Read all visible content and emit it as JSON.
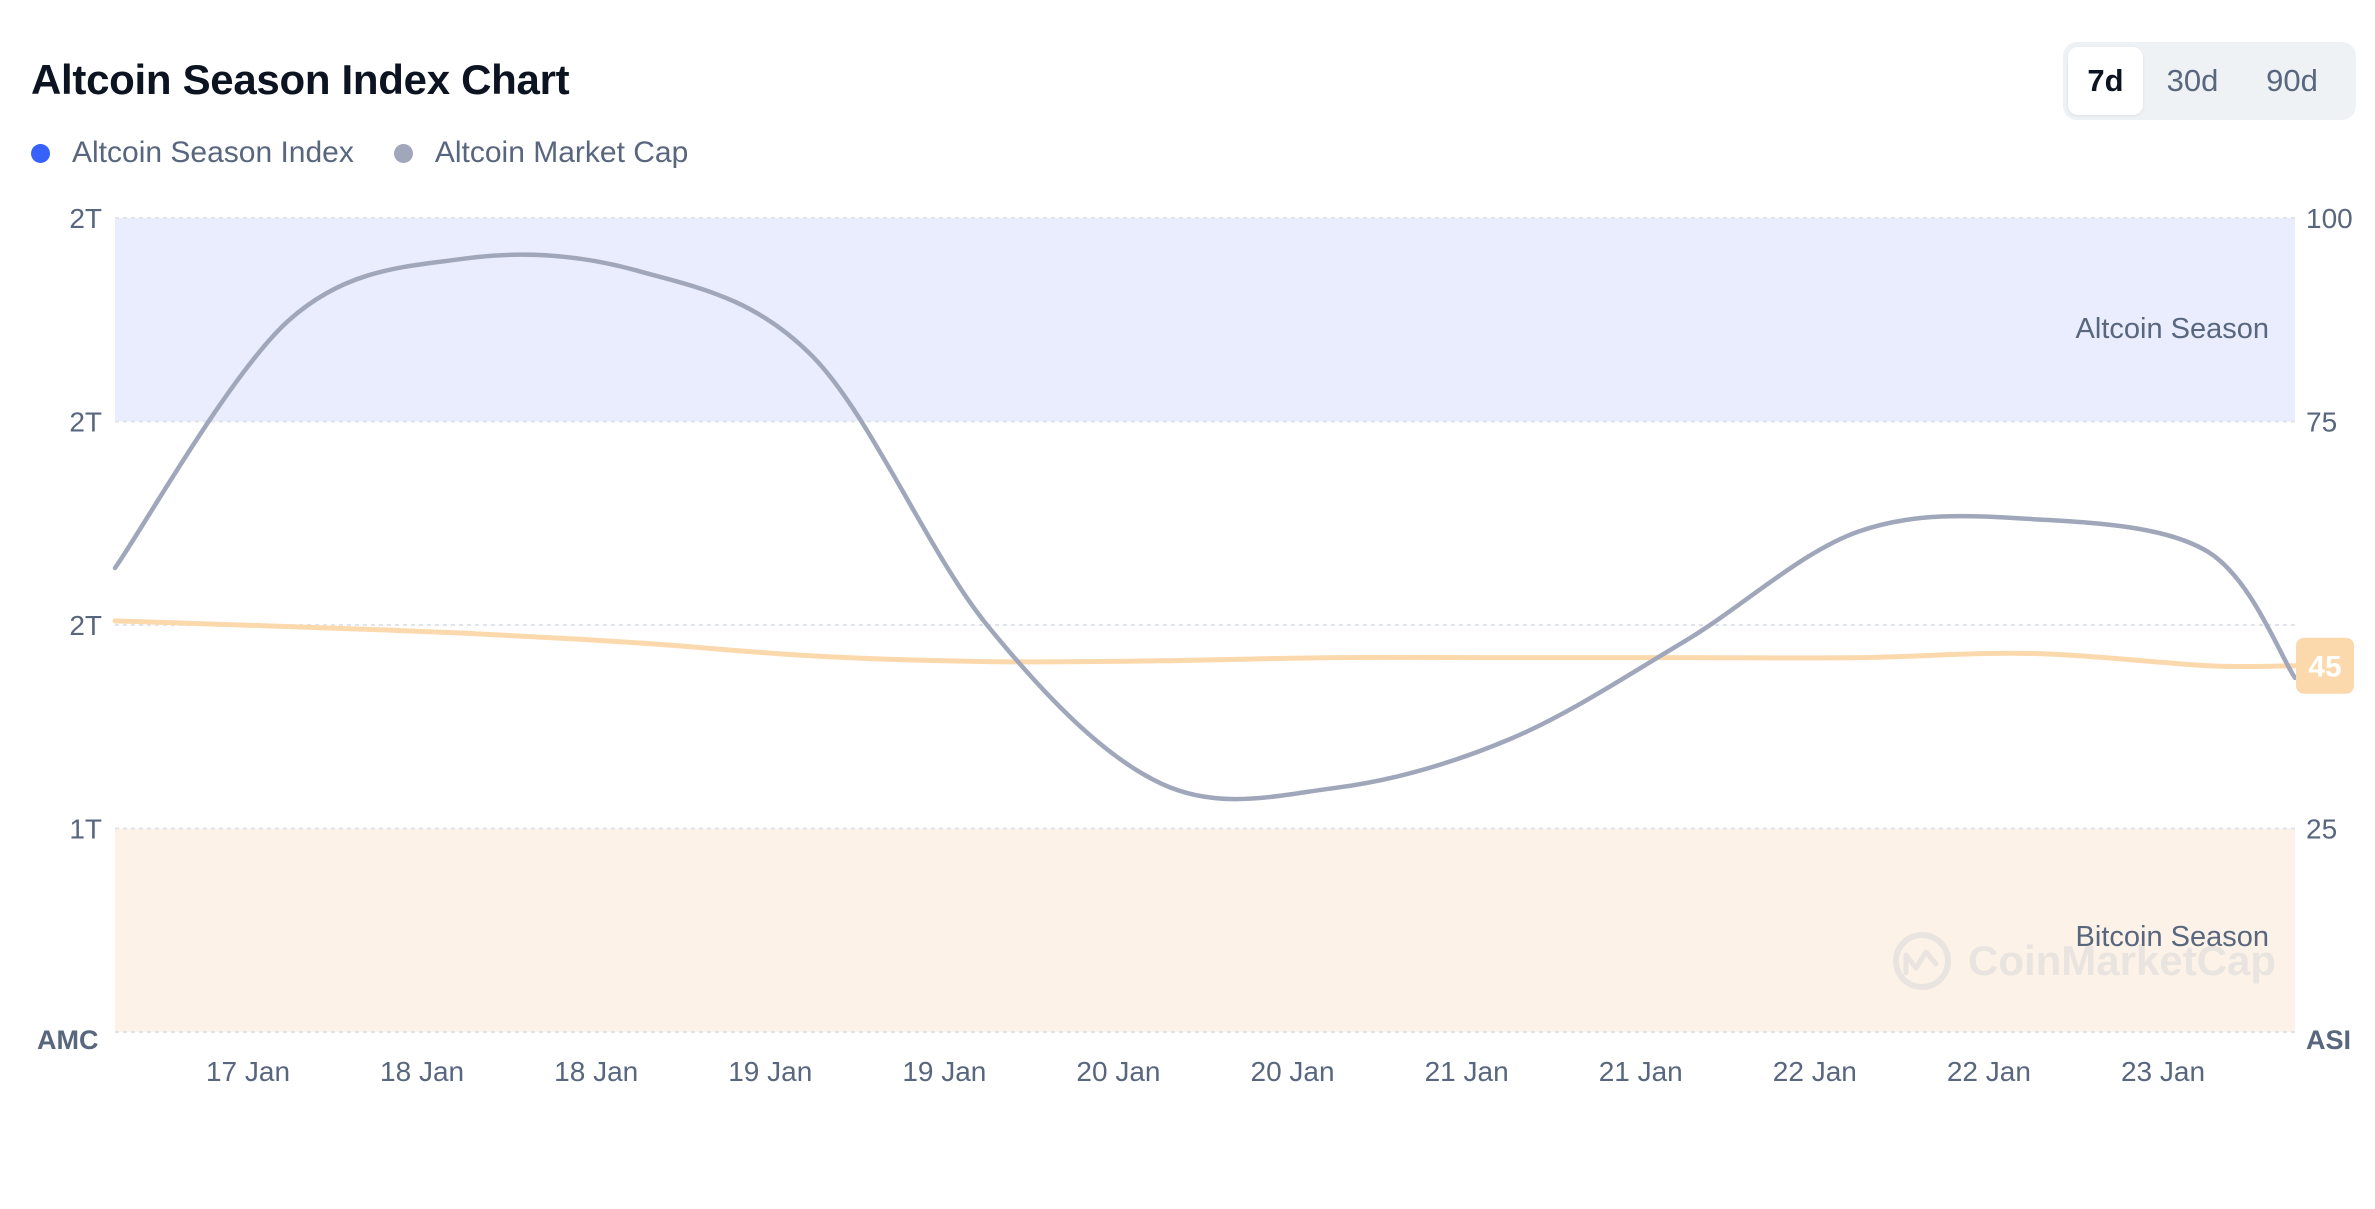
{
  "header": {
    "title": "Altcoin Season Index Chart"
  },
  "legend": [
    {
      "label": "Altcoin Season Index",
      "color": "#3861fb"
    },
    {
      "label": "Altcoin Market Cap",
      "color": "#a1a7bb"
    }
  ],
  "range_buttons": {
    "selected": "7d",
    "items": [
      "7d",
      "30d",
      "90d"
    ]
  },
  "chart_data": {
    "type": "line",
    "title": "Altcoin Season Index Chart",
    "x_tick_labels": [
      "17 Jan",
      "18 Jan",
      "18 Jan",
      "19 Jan",
      "19 Jan",
      "20 Jan",
      "20 Jan",
      "21 Jan",
      "21 Jan",
      "22 Jan",
      "22 Jan",
      "23 Jan"
    ],
    "left_axis": {
      "title": "AMC",
      "tick_labels": [
        "2T",
        "2T",
        "2T",
        "1T"
      ]
    },
    "right_axis": {
      "title": "ASI",
      "tick_labels": [
        "100",
        "75",
        "25"
      ],
      "ylim": [
        0,
        100
      ]
    },
    "zones": [
      {
        "label": "Altcoin Season",
        "range": [
          75,
          100
        ],
        "color": "#eaedfd"
      },
      {
        "label": "Bitcoin Season",
        "range": [
          0,
          25
        ],
        "color": "#fcf2e8"
      }
    ],
    "x": [
      0,
      0.5,
      1.0,
      1.5,
      2.0,
      2.5,
      3.0,
      3.5,
      4.0,
      4.5,
      5.0,
      5.5,
      6.0,
      6.25
    ],
    "series": [
      {
        "name": "Altcoin Season Index",
        "axis": "right",
        "color": "#fcd9ad",
        "values": [
          50.5,
          49.8,
          49.0,
          47.8,
          46.2,
          45.5,
          45.6,
          46.0,
          46.0,
          46.0,
          46.0,
          46.5,
          45.0,
          45.0
        ],
        "last_value_label": "45"
      },
      {
        "name": "Altcoin Market Cap",
        "axis": "left",
        "color": "#a1a7bb",
        "values": [
          57.0,
          87.5,
          95.0,
          93.5,
          83.0,
          50.0,
          30.5,
          30.0,
          36.0,
          48.0,
          61.5,
          63.0,
          59.0,
          43.5
        ]
      }
    ],
    "grid": true,
    "legend_position": "top-left"
  },
  "watermark": {
    "text": "CoinMarketCap"
  }
}
